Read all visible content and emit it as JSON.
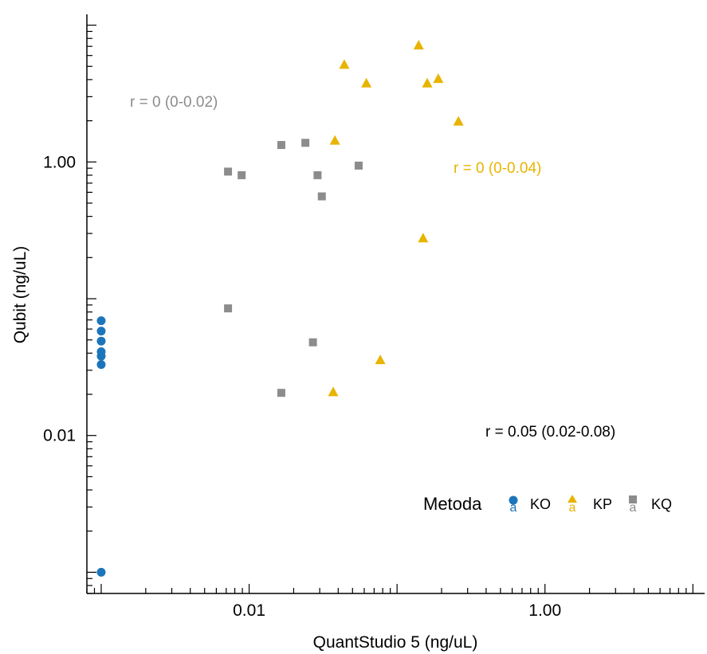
{
  "chart_data": {
    "type": "scatter",
    "xlabel": "QuantStudio 5 (ng/uL)",
    "ylabel": "Qubit (ng/uL)",
    "xscale": "log",
    "yscale": "log",
    "xlim": [
      0.0008,
      12
    ],
    "ylim": [
      0.0007,
      12
    ],
    "x_ticks": [
      0.01,
      1.0
    ],
    "x_tick_labels": [
      "0.01",
      "1.00"
    ],
    "y_ticks": [
      0.01,
      1.0
    ],
    "y_tick_labels": [
      "0.01",
      "1.00"
    ],
    "grid": false,
    "legend": {
      "title": "Metoda",
      "placement": "bottom-right",
      "items": [
        {
          "label": "KO",
          "letter": "a",
          "color": "#1b75bb",
          "marker": "circle"
        },
        {
          "label": "KP",
          "letter": "a",
          "color": "#e8b400",
          "marker": "triangle"
        },
        {
          "label": "KQ",
          "letter": "a",
          "color": "#8c8c8c",
          "marker": "square"
        }
      ]
    },
    "series": [
      {
        "name": "KO",
        "color": "#1b75bb",
        "marker": "circle",
        "points": [
          [
            0.001,
            0.069
          ],
          [
            0.001,
            0.058
          ],
          [
            0.001,
            0.049
          ],
          [
            0.001,
            0.041
          ],
          [
            0.001,
            0.038
          ],
          [
            0.001,
            0.033
          ],
          [
            0.001,
            0.001
          ]
        ]
      },
      {
        "name": "KP",
        "color": "#e8b400",
        "marker": "triangle",
        "points": [
          [
            0.14,
            7.2
          ],
          [
            0.044,
            5.2
          ],
          [
            0.062,
            3.8
          ],
          [
            0.16,
            3.8
          ],
          [
            0.19,
            4.1
          ],
          [
            0.26,
            2.0
          ],
          [
            0.038,
            1.45
          ],
          [
            0.15,
            0.28
          ],
          [
            0.077,
            0.036
          ],
          [
            0.037,
            0.021
          ]
        ]
      },
      {
        "name": "KQ",
        "color": "#8c8c8c",
        "marker": "square",
        "points": [
          [
            0.0165,
            1.33
          ],
          [
            0.024,
            1.38
          ],
          [
            0.055,
            0.94
          ],
          [
            0.0072,
            0.85
          ],
          [
            0.0089,
            0.8
          ],
          [
            0.029,
            0.8
          ],
          [
            0.031,
            0.56
          ],
          [
            0.0072,
            0.085
          ],
          [
            0.027,
            0.048
          ],
          [
            0.0165,
            0.0205
          ]
        ]
      }
    ],
    "annotations": [
      {
        "text": "r = 0 (0-0.02)",
        "color": "#8c8c8c"
      },
      {
        "text": "r = 0 (0-0.04)",
        "color": "#e8b400"
      },
      {
        "text": "r = 0.05 (0.02-0.08)",
        "color": "#000000"
      }
    ]
  }
}
